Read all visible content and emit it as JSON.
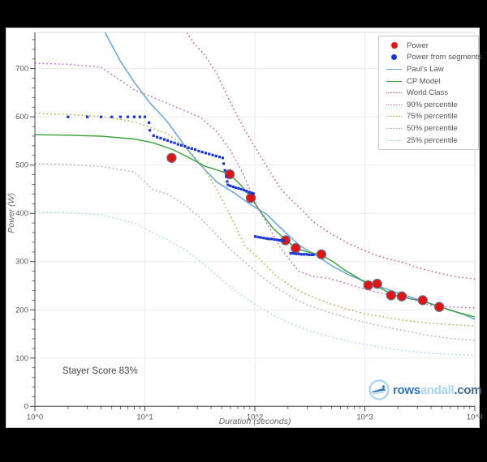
{
  "annotations": {
    "stayer_score": "Stayer Score 83%"
  },
  "logo": {
    "prefix": "rows",
    "middle": "andall",
    "suffix": ".com",
    "prefix_color": "#2f77b8",
    "middle_color": "#a9d3ef",
    "suffix_color": "#4a6b8d"
  },
  "chart_data": {
    "type": "line",
    "title": "",
    "xlabel": "Duration (seconds)",
    "ylabel": "Power (W)",
    "x_scale": "log",
    "xlim": [
      1,
      10000
    ],
    "ylim": [
      0,
      775
    ],
    "grid": true,
    "legend_position": "top-right",
    "x_ticks": [
      {
        "value": 1,
        "label": "10^0"
      },
      {
        "value": 10,
        "label": "10^1"
      },
      {
        "value": 100,
        "label": "10^2"
      },
      {
        "value": 1000,
        "label": "10^3"
      },
      {
        "value": 10000,
        "label": "10^4"
      }
    ],
    "y_ticks": [
      0,
      100,
      200,
      300,
      400,
      500,
      600,
      700
    ],
    "y_minor_step": 20,
    "series": [
      {
        "name": "Power",
        "type": "scatter",
        "marker": "circle",
        "color": "#e11414",
        "edge": "#6d6d85",
        "size": 5.6,
        "points": [
          [
            17.5,
            515
          ],
          [
            59,
            481
          ],
          [
            92,
            432
          ],
          [
            190,
            344
          ],
          [
            235,
            328
          ],
          [
            402,
            315
          ],
          [
            1074,
            251
          ],
          [
            1294,
            254
          ],
          [
            1733,
            230
          ],
          [
            2168,
            228
          ],
          [
            3360,
            220
          ],
          [
            4753,
            206
          ]
        ]
      },
      {
        "name": "Power from segments",
        "type": "scatter",
        "marker": "square",
        "color": "#1a35cc",
        "size": 1.6,
        "points": [
          [
            2,
            600
          ],
          [
            3,
            600
          ],
          [
            4,
            600
          ],
          [
            5,
            600
          ],
          [
            6,
            600
          ],
          [
            7,
            600
          ],
          [
            8,
            600
          ],
          [
            9,
            600
          ],
          [
            10,
            600
          ],
          [
            10.9,
            588
          ],
          [
            11.1,
            572
          ],
          [
            12,
            561
          ],
          [
            12.9,
            558
          ],
          [
            13.9,
            556
          ],
          [
            15,
            553
          ],
          [
            16.1,
            551
          ],
          [
            17.3,
            548
          ],
          [
            18.6,
            546
          ],
          [
            20,
            543
          ],
          [
            21.5,
            541
          ],
          [
            23.1,
            539
          ],
          [
            24.9,
            536
          ],
          [
            26.7,
            534
          ],
          [
            28.7,
            532
          ],
          [
            30.9,
            529
          ],
          [
            33.2,
            527
          ],
          [
            35.7,
            525
          ],
          [
            38.4,
            523
          ],
          [
            41.3,
            521
          ],
          [
            44.4,
            519
          ],
          [
            47.7,
            517
          ],
          [
            51,
            515
          ],
          [
            52,
            503
          ],
          [
            53.5,
            489
          ],
          [
            55,
            476
          ],
          [
            56,
            466
          ],
          [
            57,
            459
          ],
          [
            60,
            457
          ],
          [
            63.5,
            455
          ],
          [
            67,
            453
          ],
          [
            71,
            452
          ],
          [
            75,
            450
          ],
          [
            79.5,
            448
          ],
          [
            84,
            446
          ],
          [
            89,
            444
          ],
          [
            94,
            442
          ],
          [
            97,
            441
          ],
          [
            101,
            352
          ],
          [
            107,
            351
          ],
          [
            113,
            350
          ],
          [
            120,
            349
          ],
          [
            127,
            348
          ],
          [
            134,
            347
          ],
          [
            142,
            347
          ],
          [
            150,
            346
          ],
          [
            159,
            345
          ],
          [
            168,
            344
          ],
          [
            178,
            344
          ],
          [
            183,
            343
          ],
          [
            212,
            317
          ],
          [
            224,
            317
          ],
          [
            237,
            316
          ],
          [
            251,
            316
          ],
          [
            265,
            315
          ],
          [
            280,
            315
          ],
          [
            296,
            315
          ],
          [
            313,
            314
          ],
          [
            331,
            314
          ],
          [
            340,
            314
          ]
        ]
      },
      {
        "name": "Paul's Law",
        "type": "line",
        "color": "#6fa8dc",
        "width": 1.6,
        "points": [
          [
            4,
            790
          ],
          [
            6,
            715
          ],
          [
            8,
            672
          ],
          [
            11,
            630
          ],
          [
            16,
            590
          ],
          [
            23,
            540
          ],
          [
            30,
            507
          ],
          [
            45,
            465
          ],
          [
            64,
            443
          ],
          [
            92,
            418
          ],
          [
            128,
            398
          ],
          [
            180,
            365
          ],
          [
            256,
            333
          ],
          [
            360,
            313
          ],
          [
            512,
            290
          ],
          [
            724,
            272
          ],
          [
            1024,
            258
          ],
          [
            1448,
            246
          ],
          [
            2048,
            234
          ],
          [
            2896,
            223
          ],
          [
            4096,
            212
          ],
          [
            5793,
            201
          ],
          [
            8192,
            189
          ],
          [
            10000,
            180
          ]
        ]
      },
      {
        "name": "CP Model",
        "type": "line",
        "color": "#3c9e3c",
        "width": 1.4,
        "points": [
          [
            1,
            563
          ],
          [
            2,
            562
          ],
          [
            4,
            560
          ],
          [
            8,
            554
          ],
          [
            12,
            546
          ],
          [
            18,
            532
          ],
          [
            25,
            516
          ],
          [
            35,
            498
          ],
          [
            48,
            488
          ],
          [
            59,
            481
          ],
          [
            75,
            458
          ],
          [
            92,
            433
          ],
          [
            115,
            400
          ],
          [
            145,
            370
          ],
          [
            190,
            345
          ],
          [
            235,
            328
          ],
          [
            300,
            320
          ],
          [
            402,
            314
          ],
          [
            520,
            299
          ],
          [
            660,
            282
          ],
          [
            786,
            272
          ],
          [
            900,
            264
          ],
          [
            1074,
            252
          ],
          [
            1294,
            248
          ],
          [
            1500,
            241
          ],
          [
            1733,
            232
          ],
          [
            2168,
            227
          ],
          [
            2700,
            222
          ],
          [
            3360,
            218
          ],
          [
            4000,
            212
          ],
          [
            4753,
            207
          ],
          [
            6000,
            199
          ],
          [
            8000,
            191
          ],
          [
            10000,
            185
          ]
        ]
      },
      {
        "name": "World Class",
        "type": "dotted",
        "color": "#cc5f5f",
        "width": 1.4,
        "points": [
          [
            20,
            790
          ],
          [
            24,
            775
          ],
          [
            28,
            752
          ],
          [
            35,
            728
          ],
          [
            45,
            690
          ],
          [
            60,
            630
          ],
          [
            80,
            575
          ],
          [
            99,
            540
          ],
          [
            130,
            495
          ],
          [
            170,
            452
          ],
          [
            220,
            425
          ],
          [
            258,
            411
          ],
          [
            330,
            385
          ],
          [
            420,
            368
          ],
          [
            519,
            355
          ],
          [
            700,
            338
          ],
          [
            900,
            327
          ],
          [
            1200,
            315
          ],
          [
            1600,
            306
          ],
          [
            2168,
            299
          ],
          [
            3000,
            288
          ],
          [
            4000,
            280
          ],
          [
            5500,
            273
          ],
          [
            7000,
            268
          ],
          [
            10000,
            264
          ]
        ]
      },
      {
        "name": "90% percentile",
        "type": "dotted",
        "color": "#c45fc4",
        "width": 1.4,
        "points": [
          [
            1,
            711
          ],
          [
            2,
            709
          ],
          [
            4,
            703
          ],
          [
            8,
            656
          ],
          [
            16,
            628
          ],
          [
            32,
            599
          ],
          [
            45,
            570
          ],
          [
            60,
            530
          ],
          [
            75,
            490
          ],
          [
            90,
            450
          ],
          [
            105,
            415
          ],
          [
            128,
            380
          ],
          [
            150,
            352
          ],
          [
            170,
            330
          ],
          [
            212,
            301
          ],
          [
            250,
            280
          ],
          [
            330,
            270
          ],
          [
            474,
            265
          ],
          [
            650,
            256
          ],
          [
            900,
            246
          ],
          [
            1200,
            238
          ],
          [
            1880,
            229
          ],
          [
            2800,
            221
          ],
          [
            3790,
            210
          ],
          [
            6000,
            206
          ],
          [
            10000,
            204
          ]
        ]
      },
      {
        "name": "75% percentile",
        "type": "dotted",
        "color": "#b0ad4a",
        "width": 1.4,
        "points": [
          [
            1,
            607
          ],
          [
            2,
            605
          ],
          [
            4,
            601
          ],
          [
            8,
            590
          ],
          [
            16,
            565
          ],
          [
            24,
            535
          ],
          [
            32,
            505
          ],
          [
            45,
            450
          ],
          [
            60,
            395
          ],
          [
            81,
            333
          ],
          [
            114,
            302
          ],
          [
            155,
            271
          ],
          [
            210,
            250
          ],
          [
            300,
            231
          ],
          [
            450,
            215
          ],
          [
            700,
            201
          ],
          [
            1000,
            192
          ],
          [
            1500,
            185
          ],
          [
            2500,
            177
          ],
          [
            4000,
            172
          ],
          [
            6500,
            169
          ],
          [
            10000,
            167
          ]
        ]
      },
      {
        "name": "50% percentile",
        "type": "dotted",
        "color": "#b5a9a9",
        "width": 1.4,
        "points": [
          [
            1,
            503
          ],
          [
            2,
            501
          ],
          [
            4,
            497
          ],
          [
            8,
            486
          ],
          [
            12,
            448
          ],
          [
            16,
            440
          ],
          [
            24,
            415
          ],
          [
            32,
            390
          ],
          [
            45,
            355
          ],
          [
            60,
            325
          ],
          [
            81,
            299
          ],
          [
            114,
            270
          ],
          [
            155,
            247
          ],
          [
            210,
            228
          ],
          [
            300,
            210
          ],
          [
            450,
            196
          ],
          [
            700,
            183
          ],
          [
            1000,
            174
          ],
          [
            1500,
            165
          ],
          [
            2500,
            155
          ],
          [
            4000,
            146
          ],
          [
            6500,
            140
          ],
          [
            10000,
            137
          ]
        ]
      },
      {
        "name": "25% percentile",
        "type": "dotted",
        "color": "#a6d5ef",
        "width": 1.4,
        "points": [
          [
            1,
            403
          ],
          [
            2,
            401
          ],
          [
            4,
            397
          ],
          [
            8,
            380
          ],
          [
            11.5,
            361
          ],
          [
            16,
            345
          ],
          [
            24,
            322
          ],
          [
            32,
            300
          ],
          [
            45,
            272
          ],
          [
            60,
            248
          ],
          [
            81,
            225
          ],
          [
            114,
            203
          ],
          [
            155,
            186
          ],
          [
            210,
            172
          ],
          [
            300,
            158
          ],
          [
            450,
            146
          ],
          [
            700,
            135
          ],
          [
            1000,
            128
          ],
          [
            1500,
            121
          ],
          [
            2500,
            114
          ],
          [
            4000,
            110
          ],
          [
            6500,
            107
          ],
          [
            10000,
            106
          ]
        ]
      }
    ]
  }
}
